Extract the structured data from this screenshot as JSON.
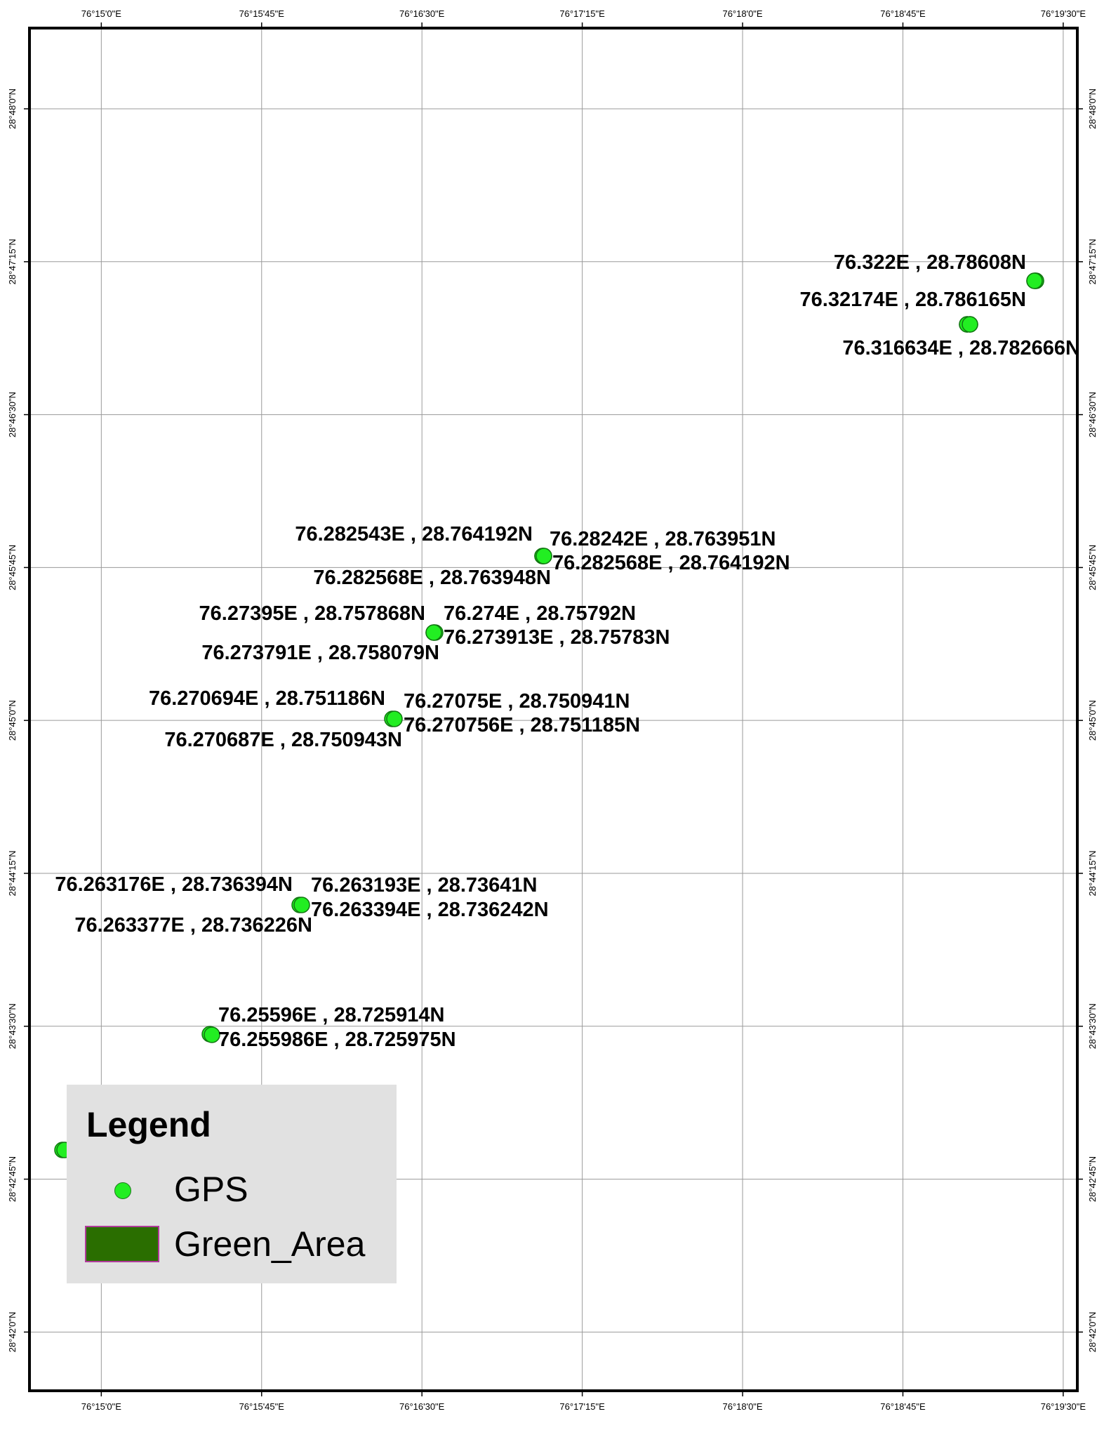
{
  "map": {
    "lon_range": [
      76.2444,
      76.3261
    ],
    "lat_range": [
      28.6952,
      28.8066
    ],
    "grid_color": "#9a9a9a",
    "frame_color": "#000000",
    "point_fill": "#22ee22",
    "point_stroke": "#117711",
    "lon_ticks": [
      {
        "value": 76.25,
        "label": "76°15'0\"E"
      },
      {
        "value": 76.2625,
        "label": "76°15'45\"E"
      },
      {
        "value": 76.275,
        "label": "76°16'30\"E"
      },
      {
        "value": 76.2875,
        "label": "76°17'15\"E"
      },
      {
        "value": 76.3,
        "label": "76°18'0\"E"
      },
      {
        "value": 76.3125,
        "label": "76°18'45\"E"
      },
      {
        "value": 76.325,
        "label": "76°19'30\"E"
      }
    ],
    "lat_ticks": [
      {
        "value": 28.8,
        "label": "28°48'0\"N"
      },
      {
        "value": 28.7875,
        "label": "28°47'15\"N"
      },
      {
        "value": 28.775,
        "label": "28°46'30\"N"
      },
      {
        "value": 28.7625,
        "label": "28°45'45\"N"
      },
      {
        "value": 28.75,
        "label": "28°45'0\"N"
      },
      {
        "value": 28.7375,
        "label": "28°44'15\"N"
      },
      {
        "value": 28.725,
        "label": "28°43'30\"N"
      },
      {
        "value": 28.7125,
        "label": "28°42'45\"N"
      },
      {
        "value": 28.7,
        "label": "28°42'0\"N"
      }
    ],
    "gps_points": [
      {
        "lon": 76.322,
        "lat": 28.78608,
        "label": "76.322E ,  28.78608N"
      },
      {
        "lon": 76.32174,
        "lat": 28.786165,
        "label": "76.32174E ,  28.786165N"
      },
      {
        "lon": 76.316634,
        "lat": 28.782666,
        "label": "76.316634E ,  28.782666N"
      },
      {
        "lon": 76.282543,
        "lat": 28.764192,
        "label": "76.282543E ,  28.764192N"
      },
      {
        "lon": 76.28242,
        "lat": 28.763951,
        "label": "76.28242E ,  28.763951N"
      },
      {
        "lon": 76.282568,
        "lat": 28.764192,
        "label": "76.282568E ,  28.764192N"
      },
      {
        "lon": 76.282568,
        "lat": 28.763948,
        "label": "76.282568E ,  28.763948N"
      },
      {
        "lon": 76.27395,
        "lat": 28.757868,
        "label": "76.27395E ,  28.757868N"
      },
      {
        "lon": 76.274,
        "lat": 28.75792,
        "label": "76.274E ,  28.75792N"
      },
      {
        "lon": 76.273913,
        "lat": 28.75783,
        "label": "76.273913E ,  28.75783N"
      },
      {
        "lon": 76.273791,
        "lat": 28.758079,
        "label": "76.273791E ,  28.758079N"
      },
      {
        "lon": 76.270694,
        "lat": 28.751186,
        "label": "76.270694E ,  28.751186N"
      },
      {
        "lon": 76.27075,
        "lat": 28.750941,
        "label": "76.27075E ,  28.750941N"
      },
      {
        "lon": 76.270756,
        "lat": 28.751185,
        "label": "76.270756E ,  28.751185N"
      },
      {
        "lon": 76.270687,
        "lat": 28.750943,
        "label": "76.270687E ,  28.750943N"
      },
      {
        "lon": 76.263176,
        "lat": 28.736394,
        "label": "76.263176E ,  28.736394N"
      },
      {
        "lon": 76.263193,
        "lat": 28.73641,
        "label": "76.263193E ,  28.73641N"
      },
      {
        "lon": 76.263394,
        "lat": 28.736242,
        "label": "76.263394E ,  28.736242N"
      },
      {
        "lon": 76.263377,
        "lat": 28.736226,
        "label": "76.263377E ,  28.736226N"
      },
      {
        "lon": 76.25596,
        "lat": 28.725914,
        "label": "76.25596E ,  28.725914N"
      },
      {
        "lon": 76.255986,
        "lat": 28.725975,
        "label": "76.255986E ,  28.725975N"
      }
    ],
    "extra_points": [
      {
        "lon": 76.2447,
        "lat": 28.7155
      },
      {
        "lon": 76.2449,
        "lat": 28.7155
      }
    ]
  },
  "legend": {
    "title": "Legend",
    "items": [
      {
        "label": "GPS",
        "color": "#22ee22"
      },
      {
        "label": "Green_Area",
        "color": "#2a6e00",
        "border": "#b03a9b"
      }
    ]
  }
}
